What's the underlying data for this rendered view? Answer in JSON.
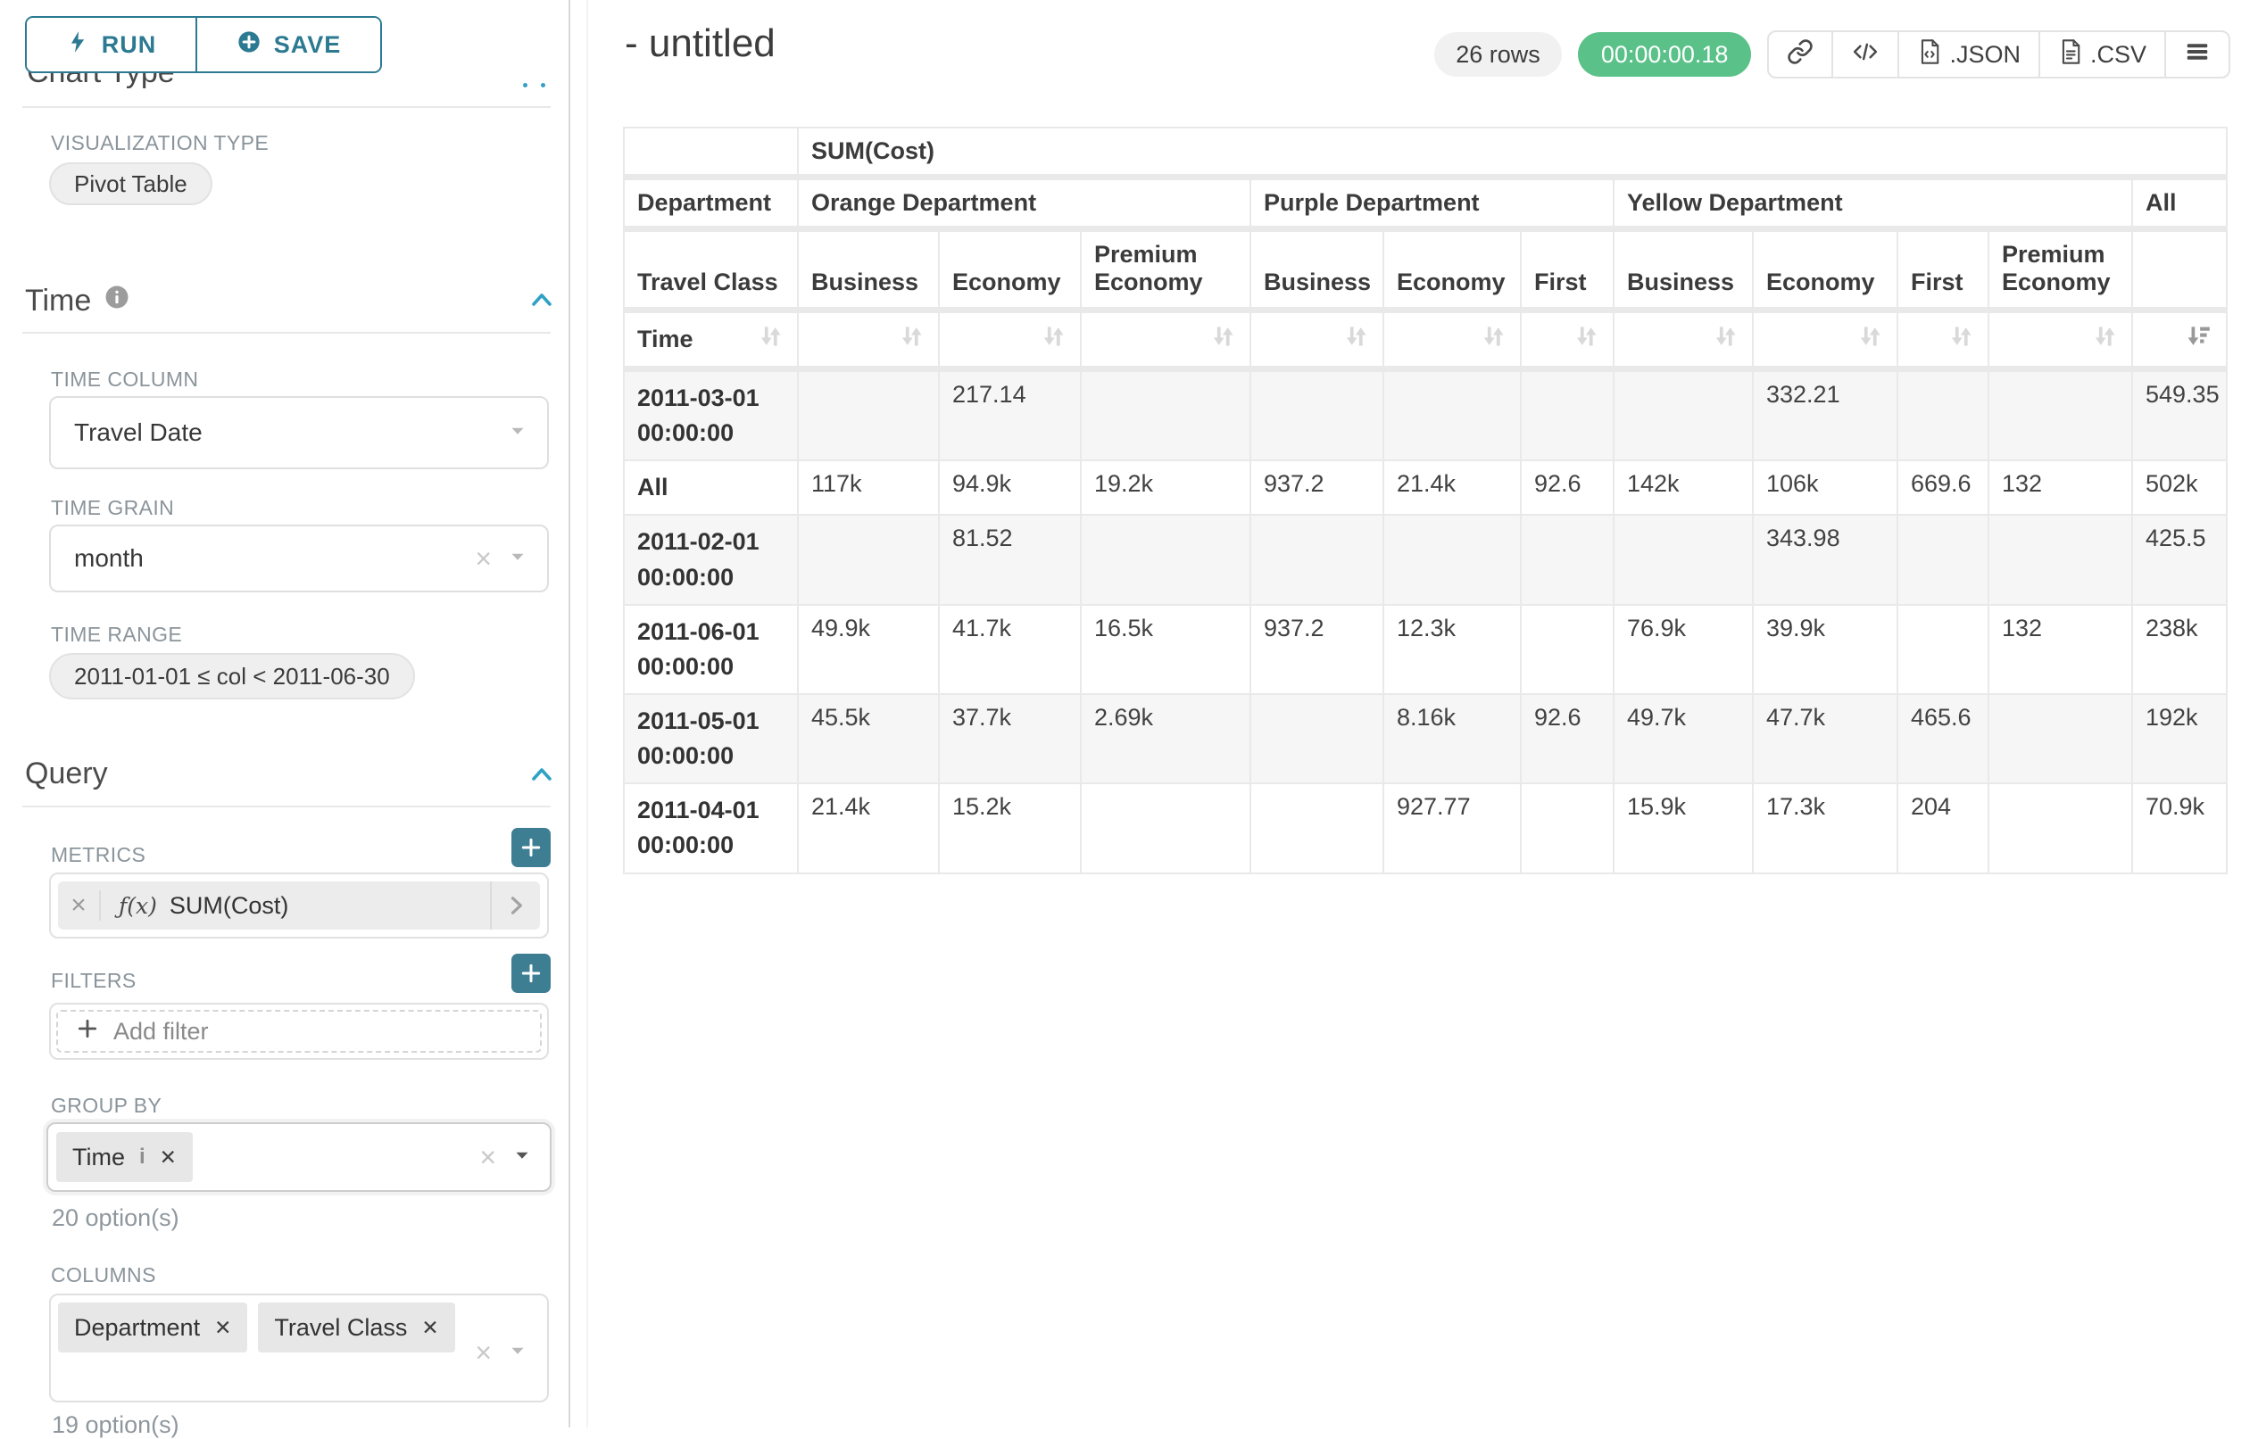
{
  "panel": {
    "run_label": "RUN",
    "save_label": "SAVE",
    "clipped_section_title": "Chart Type",
    "viz_label": "VISUALIZATION TYPE",
    "viz_value": "Pivot Table",
    "time": {
      "title": "Time",
      "info_icon": "info-circle-icon",
      "column_label": "TIME COLUMN",
      "column_value": "Travel Date",
      "grain_label": "TIME GRAIN",
      "grain_value": "month",
      "range_label": "TIME RANGE",
      "range_value": "2011-01-01 ≤ col < 2011-06-30"
    },
    "query": {
      "title": "Query",
      "metrics_label": "METRICS",
      "metric_fx": "ƒ(x)",
      "metric_value": "SUM(Cost)",
      "filters_label": "FILTERS",
      "add_filter_label": "Add filter",
      "group_by_label": "GROUP BY",
      "group_by_pills": [
        {
          "label": "Time",
          "info": true
        }
      ],
      "group_by_count": "20 option(s)",
      "columns_label": "COLUMNS",
      "columns_pills": [
        {
          "label": "Department",
          "info": false
        },
        {
          "label": "Travel Class",
          "info": false
        }
      ],
      "columns_count": "19 option(s)"
    }
  },
  "header": {
    "title": "- untitled",
    "rows_badge": "26 rows",
    "timer": "00:00:00.18",
    "icons": [
      "link-icon",
      "embed-code-icon",
      "file-json-icon",
      "file-csv-icon",
      "menu-icon"
    ],
    "json_label": ".JSON",
    "csv_label": ".CSV"
  },
  "table": {
    "metric_header": "SUM(Cost)",
    "dimension_col_label": "Department",
    "dimension_col2_label": "Travel Class",
    "row_dimension_label": "Time",
    "sort_icons": {
      "inactive": "sort-both-icon",
      "active": "sort-descending-icon"
    },
    "groups": [
      {
        "label": "Orange Department",
        "children": [
          "Business",
          "Economy",
          "Premium Economy"
        ]
      },
      {
        "label": "Purple Department",
        "children": [
          "Business",
          "Economy",
          "First"
        ]
      },
      {
        "label": "Yellow Department",
        "children": [
          "Business",
          "Economy",
          "First",
          "Premium Economy"
        ]
      },
      {
        "label": "All",
        "children": [
          ""
        ]
      }
    ],
    "rows": [
      {
        "label": "2011-03-01 00:00:00",
        "values": [
          "",
          "217.14",
          "",
          "",
          "",
          "",
          "",
          "332.21",
          "",
          "",
          "549.35"
        ]
      },
      {
        "label": "All",
        "values": [
          "117k",
          "94.9k",
          "19.2k",
          "937.2",
          "21.4k",
          "92.6",
          "142k",
          "106k",
          "669.6",
          "132",
          "502k"
        ]
      },
      {
        "label": "2011-02-01 00:00:00",
        "values": [
          "",
          "81.52",
          "",
          "",
          "",
          "",
          "",
          "343.98",
          "",
          "",
          "425.5"
        ]
      },
      {
        "label": "2011-06-01 00:00:00",
        "values": [
          "49.9k",
          "41.7k",
          "16.5k",
          "937.2",
          "12.3k",
          "",
          "76.9k",
          "39.9k",
          "",
          "132",
          "238k"
        ]
      },
      {
        "label": "2011-05-01 00:00:00",
        "values": [
          "45.5k",
          "37.7k",
          "2.69k",
          "",
          "8.16k",
          "92.6",
          "49.7k",
          "47.7k",
          "465.6",
          "",
          "192k"
        ]
      },
      {
        "label": "2011-04-01 00:00:00",
        "values": [
          "21.4k",
          "15.2k",
          "",
          "",
          "927.77",
          "",
          "15.9k",
          "17.3k",
          "204",
          "",
          "70.9k"
        ]
      }
    ]
  },
  "colors": {
    "accent_teal": "#2b7a91",
    "plus_button_teal": "#3d7e93",
    "chevron_blue": "#2fa1c4",
    "timer_green": "#5ac189",
    "label_gray": "#8a949b",
    "table_border": "#e9e9e9",
    "row_stripe": "#f6f6f6"
  }
}
